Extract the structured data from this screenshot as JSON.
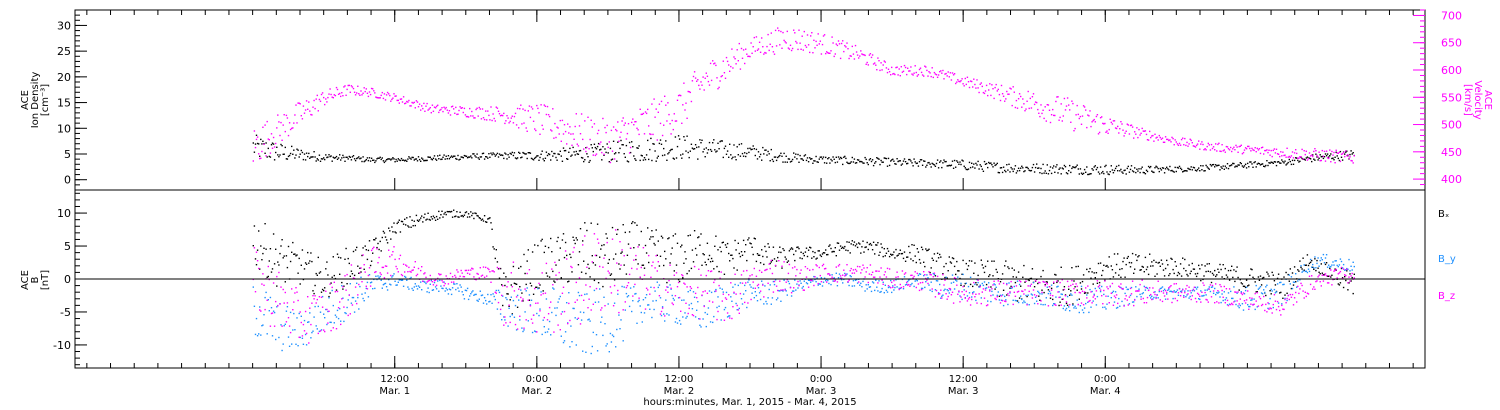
{
  "chart_data": [
    {
      "type": "scatter",
      "panel": "plasma",
      "left_axis": {
        "lines": [
          "ACE",
          "Ion Density",
          "[cm⁻³]"
        ],
        "ylim": [
          -2,
          33
        ],
        "major_ticks": [
          0,
          5,
          10,
          15,
          20,
          25,
          30
        ],
        "minor_step": 1
      },
      "right_axis": {
        "lines": [
          "ACE",
          "Velocity",
          "[km/s]"
        ],
        "ylim": [
          380,
          710
        ],
        "major_ticks": [
          400,
          450,
          500,
          550,
          600,
          650,
          700
        ],
        "minor_step": 10,
        "color": "#ff00ff"
      },
      "series": [
        {
          "key": "density",
          "axis": "left",
          "color": "#000000",
          "x": [
            0,
            2,
            4,
            6,
            8,
            10,
            12,
            15,
            18,
            21,
            24,
            27,
            30,
            33,
            36,
            39,
            42,
            45,
            48,
            51,
            54,
            57,
            60,
            63,
            66,
            69,
            72,
            75,
            78,
            81,
            84,
            87,
            90,
            93
          ],
          "y": [
            6.5,
            5.5,
            5.0,
            4.5,
            4.3,
            4.0,
            4.0,
            4.3,
            4.6,
            4.8,
            4.8,
            5.0,
            5.5,
            6.0,
            6.5,
            6.0,
            5.5,
            4.5,
            4.0,
            3.8,
            3.5,
            3.3,
            3.0,
            2.5,
            2.3,
            2.2,
            2.1,
            2.0,
            2.2,
            2.5,
            3.0,
            3.5,
            4.5,
            5.0
          ],
          "spread": [
            2.5,
            2.0,
            1.2,
            0.8,
            0.6,
            0.5,
            0.5,
            0.5,
            0.6,
            0.6,
            1.0,
            1.5,
            2.0,
            2.5,
            2.5,
            2.0,
            1.5,
            1.0,
            0.8,
            0.8,
            0.8,
            0.8,
            1.0,
            1.0,
            1.0,
            1.0,
            1.0,
            0.8,
            0.6,
            0.6,
            0.6,
            0.6,
            0.8,
            1.0
          ]
        },
        {
          "key": "velocity",
          "axis": "right",
          "color": "#ff00ff",
          "x": [
            0,
            2,
            4,
            6,
            8,
            10,
            12,
            15,
            18,
            21,
            24,
            27,
            30,
            33,
            36,
            38,
            40,
            42,
            45,
            48,
            51,
            54,
            57,
            60,
            63,
            66,
            69,
            72,
            75,
            78,
            81,
            84,
            87,
            90,
            93
          ],
          "y": [
            460,
            490,
            520,
            550,
            565,
            560,
            550,
            530,
            525,
            520,
            510,
            490,
            470,
            500,
            530,
            580,
            610,
            640,
            660,
            650,
            630,
            600,
            600,
            580,
            560,
            540,
            520,
            500,
            485,
            470,
            460,
            455,
            450,
            445,
            440
          ],
          "spread": [
            40,
            30,
            25,
            15,
            10,
            8,
            8,
            8,
            10,
            15,
            30,
            35,
            40,
            40,
            40,
            35,
            30,
            20,
            25,
            20,
            15,
            10,
            10,
            10,
            15,
            25,
            30,
            20,
            10,
            8,
            8,
            8,
            10,
            12,
            12
          ]
        }
      ]
    },
    {
      "type": "scatter",
      "panel": "magnetic-field",
      "left_axis": {
        "lines": [
          "ACE",
          "B",
          "[nT]"
        ],
        "ylim": [
          -13.5,
          13.5
        ],
        "major_ticks": [
          -10,
          -5,
          0,
          5,
          10
        ],
        "minor_step": 1
      },
      "zero_line": true,
      "series": [
        {
          "key": "bx",
          "name": "Bₓ",
          "color": "#000000",
          "x": [
            0,
            2,
            4,
            6,
            8,
            10,
            12,
            14,
            16,
            18,
            20,
            21,
            24,
            26,
            28,
            30,
            32,
            33,
            36,
            38,
            40,
            42,
            44,
            46,
            48,
            50,
            52,
            54,
            56,
            58,
            60,
            63,
            66,
            69,
            72,
            75,
            78,
            81,
            84,
            87,
            89,
            90,
            93
          ],
          "y": [
            6,
            3,
            2,
            0,
            2,
            4,
            8,
            9,
            10,
            10,
            9,
            -3,
            2,
            3,
            4,
            3,
            5,
            4,
            3,
            5,
            3,
            5,
            3,
            4,
            4,
            5,
            5,
            4,
            4,
            2,
            1,
            0,
            -1,
            -1,
            2,
            2,
            2,
            1,
            0,
            -1,
            3,
            2,
            -1
          ],
          "spread": [
            4,
            4,
            3,
            3,
            3,
            2,
            1,
            1,
            0.6,
            0.5,
            0.5,
            4,
            4,
            4,
            5,
            5,
            4,
            4,
            4,
            3,
            3,
            2,
            2,
            1,
            1,
            1,
            1,
            1,
            1.5,
            2,
            2,
            3,
            3,
            3,
            2,
            2,
            1.5,
            1.5,
            2,
            2,
            1,
            1,
            2
          ]
        },
        {
          "key": "by",
          "name": "B_y",
          "color": "#1e90ff",
          "x": [
            0,
            2,
            4,
            6,
            8,
            10,
            12,
            14,
            16,
            18,
            20,
            21,
            24,
            26,
            28,
            30,
            32,
            33,
            36,
            38,
            40,
            42,
            44,
            46,
            48,
            50,
            52,
            54,
            56,
            58,
            60,
            63,
            66,
            69,
            72,
            75,
            78,
            81,
            84,
            87,
            89,
            90,
            93
          ],
          "y": [
            -4,
            -7,
            -8,
            -5,
            -3,
            -1,
            0,
            -1,
            -1,
            -2,
            -3,
            -4,
            -5,
            -6,
            -7,
            -6,
            -5,
            -3,
            -4,
            -5,
            -3,
            -2,
            -2,
            -1,
            0,
            0,
            -1,
            -1,
            0,
            -1,
            -1,
            -2,
            -2,
            -3,
            -3,
            -2,
            -2,
            -2,
            -3,
            -2,
            2,
            3,
            2
          ],
          "spread": [
            5,
            4,
            3,
            3,
            3,
            2,
            1,
            1,
            1,
            1,
            1,
            3,
            4,
            5,
            5,
            5,
            4,
            3,
            3,
            3,
            3,
            2,
            2,
            1,
            1,
            1,
            1,
            1,
            1,
            2,
            2,
            2,
            2,
            2,
            2,
            1,
            1,
            1,
            2,
            2,
            1,
            1,
            1
          ]
        },
        {
          "key": "bz",
          "name": "B_z",
          "color": "#ff00ff",
          "x": [
            0,
            2,
            4,
            6,
            8,
            10,
            12,
            14,
            16,
            18,
            20,
            21,
            24,
            26,
            28,
            30,
            32,
            33,
            36,
            38,
            40,
            42,
            44,
            46,
            48,
            50,
            52,
            54,
            56,
            58,
            60,
            63,
            66,
            69,
            72,
            75,
            78,
            81,
            84,
            87,
            89,
            90,
            93
          ],
          "y": [
            0,
            -3,
            -6,
            -5,
            -2,
            2,
            3,
            1,
            0,
            1,
            1,
            -2,
            -3,
            -2,
            0,
            2,
            0,
            0,
            -2,
            -2,
            -3,
            -1,
            1,
            0,
            1,
            1,
            1,
            0,
            0,
            -1,
            -2,
            -2,
            -2,
            -2,
            -2,
            -2,
            -2,
            -2,
            -3,
            -4,
            -1,
            0,
            1
          ],
          "spread": [
            5,
            5,
            4,
            4,
            4,
            3,
            2,
            1.5,
            1,
            1,
            1,
            5,
            6,
            6,
            7,
            7,
            6,
            5,
            4,
            4,
            4,
            3,
            3,
            2,
            1.5,
            1.5,
            1.5,
            1.5,
            1.5,
            2,
            2,
            2,
            2,
            2,
            2,
            2,
            1.5,
            1.5,
            1.5,
            1.5,
            1.5,
            1,
            1.5
          ]
        }
      ]
    }
  ],
  "x_axis": {
    "range_hours": [
      -15,
      99
    ],
    "ticks": [
      {
        "hour": 12,
        "time": "12:00",
        "date": "Mar. 1"
      },
      {
        "hour": 24,
        "time": "0:00",
        "date": "Mar. 2"
      },
      {
        "hour": 36,
        "time": "12:00",
        "date": "Mar. 2"
      },
      {
        "hour": 48,
        "time": "0:00",
        "date": "Mar. 3"
      },
      {
        "hour": 60,
        "time": "12:00",
        "date": "Mar. 3"
      },
      {
        "hour": 72,
        "time": "0:00",
        "date": "Mar. 4"
      }
    ],
    "minor_step_hours": 2,
    "label": "hours:minutes, Mar.  1, 2015 - Mar.  4, 2015"
  }
}
